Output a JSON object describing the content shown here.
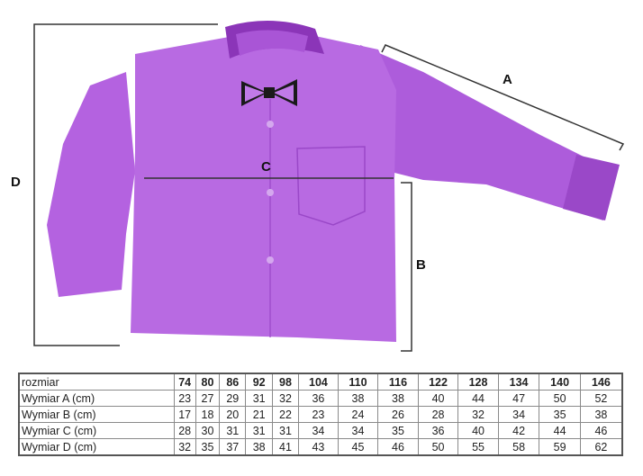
{
  "labels": {
    "a": "A",
    "b": "B",
    "c": "C",
    "d": "D"
  },
  "colors": {
    "shirt": "#b462e0",
    "shirt_shadow": "#9a48c8",
    "bowtie": "#1a1a1a",
    "lines": "#333333"
  },
  "size_table": {
    "header_label": "rozmiar",
    "sizes": [
      "74",
      "80",
      "86",
      "92",
      "98",
      "104",
      "110",
      "116",
      "122",
      "128",
      "134",
      "140",
      "146"
    ],
    "rows": [
      {
        "label": "Wymiar A (cm)",
        "values": [
          "23",
          "27",
          "29",
          "31",
          "32",
          "36",
          "38",
          "38",
          "40",
          "44",
          "47",
          "50",
          "52"
        ]
      },
      {
        "label": "Wymiar B (cm)",
        "values": [
          "17",
          "18",
          "20",
          "21",
          "22",
          "23",
          "24",
          "26",
          "28",
          "32",
          "34",
          "35",
          "38"
        ]
      },
      {
        "label": "Wymiar C (cm)",
        "values": [
          "28",
          "30",
          "31",
          "31",
          "31",
          "34",
          "34",
          "35",
          "36",
          "40",
          "42",
          "44",
          "46"
        ]
      },
      {
        "label": "Wymiar D (cm)",
        "values": [
          "32",
          "35",
          "37",
          "38",
          "41",
          "43",
          "45",
          "46",
          "50",
          "55",
          "58",
          "59",
          "62"
        ]
      }
    ]
  }
}
